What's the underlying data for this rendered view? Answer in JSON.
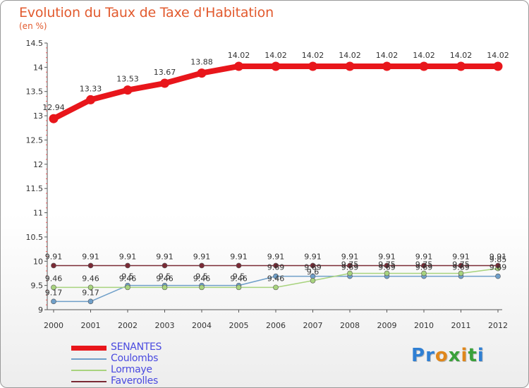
{
  "title": "Evolution du Taux de Taxe d'Habitation",
  "subtitle": "(en %)",
  "logo": {
    "text": "Proxiti",
    "letter_colors": [
      "#2f7fd3",
      "#2f7fd3",
      "#e0871b",
      "#3aa13a",
      "#e0871b",
      "#3aa13a",
      "#2f7fd3"
    ]
  },
  "chart_data": {
    "type": "line",
    "x": [
      "2000",
      "2001",
      "2002",
      "2003",
      "2004",
      "2005",
      "2006",
      "2007",
      "2008",
      "2009",
      "2010",
      "2011",
      "2012"
    ],
    "ylim": [
      9,
      14.5
    ],
    "yticks": [
      "9",
      "9.5",
      "10",
      "10.5",
      "11",
      "11.5",
      "12",
      "12.5",
      "13",
      "13.5",
      "14",
      "14.5"
    ],
    "grid": false,
    "legend_position": "bottom-left",
    "series": [
      {
        "name": "SENANTES",
        "color": "#e8161b",
        "label_color": "#4a4ae0",
        "values": [
          12.94,
          13.33,
          13.53,
          13.67,
          13.88,
          14.02,
          14.02,
          14.02,
          14.02,
          14.02,
          14.02,
          14.02,
          14.02
        ],
        "labels": [
          "12.94",
          "13.33",
          "13.53",
          "13.67",
          "13.88",
          "14.02",
          "14.02",
          "14.02",
          "14.02",
          "14.02",
          "14.02",
          "14.02",
          "14.02"
        ]
      },
      {
        "name": "Coulombs",
        "color": "#6f9fc9",
        "label_color": "#4a4ae0",
        "values": [
          9.17,
          9.17,
          9.5,
          9.5,
          9.5,
          9.5,
          9.69,
          9.69,
          9.69,
          9.69,
          9.69,
          9.69,
          9.69
        ],
        "labels": [
          "9.17",
          "9.17",
          "9.5",
          "9.5",
          "9.5",
          "9.5",
          "9.69",
          "9.69",
          "9.69",
          "9.69",
          "9.69",
          "9.69",
          "9.69"
        ]
      },
      {
        "name": "Lormaye",
        "color": "#a8d37e",
        "label_color": "#4a4ae0",
        "values": [
          9.46,
          9.46,
          9.46,
          9.46,
          9.46,
          9.46,
          9.46,
          9.6,
          9.75,
          9.75,
          9.75,
          9.75,
          9.85
        ],
        "labels": [
          "9.46",
          "9.46",
          "9.46",
          "9.46",
          "9.46",
          "9.46",
          "9.46",
          "9.6",
          "9.75",
          "9.75",
          "9.75",
          "9.75",
          "9.85"
        ]
      },
      {
        "name": "Faverolles",
        "color": "#7a2a35",
        "label_color": "#4a4ae0",
        "values": [
          9.91,
          9.91,
          9.91,
          9.91,
          9.91,
          9.91,
          9.91,
          9.91,
          9.91,
          9.91,
          9.91,
          9.91,
          9.91
        ],
        "labels": [
          "9.91",
          "9.91",
          "9.91",
          "9.91",
          "9.91",
          "9.91",
          "9.91",
          "9.91",
          "9.91",
          "9.91",
          "9.91",
          "9.91",
          "9.91"
        ]
      }
    ]
  }
}
